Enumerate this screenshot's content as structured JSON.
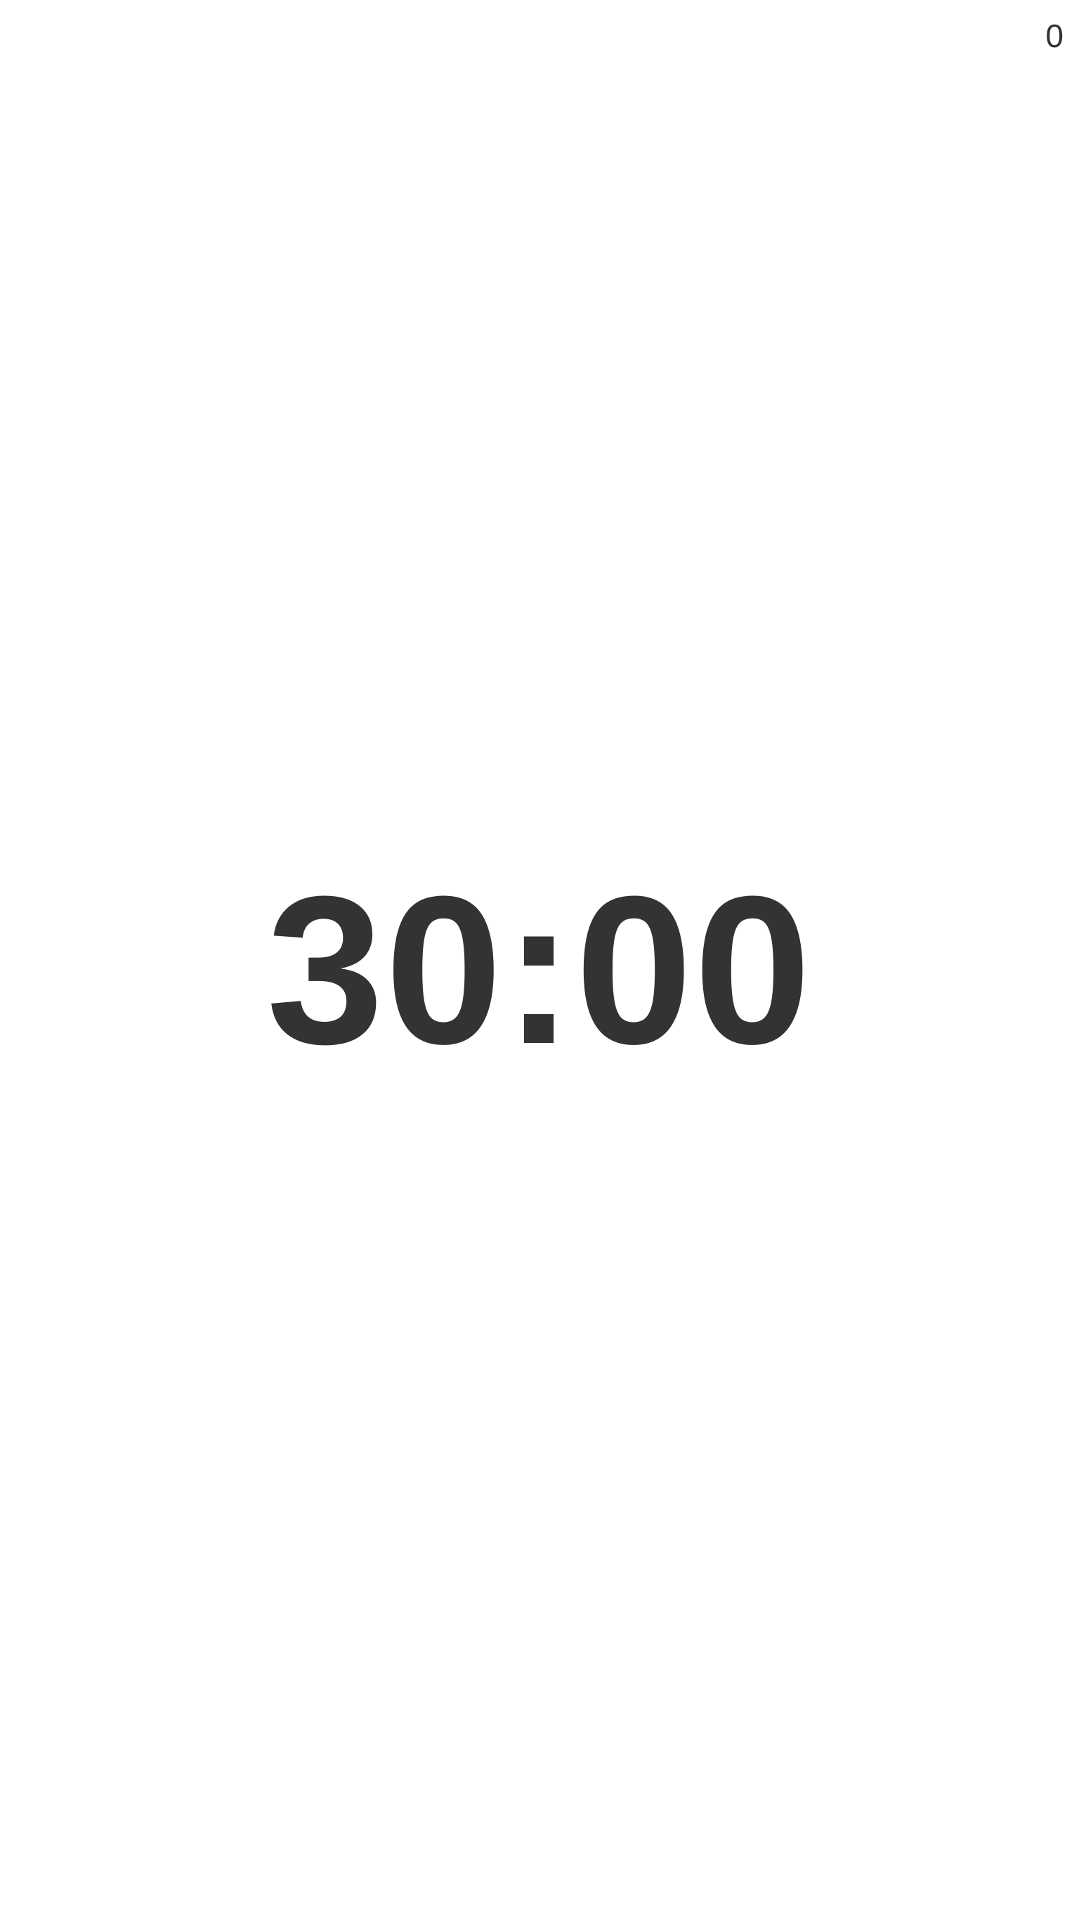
{
  "counter": {
    "value": "0"
  },
  "timer": {
    "display": "30:00"
  },
  "colors": {
    "background": "#ffffff",
    "text": "#333333"
  }
}
